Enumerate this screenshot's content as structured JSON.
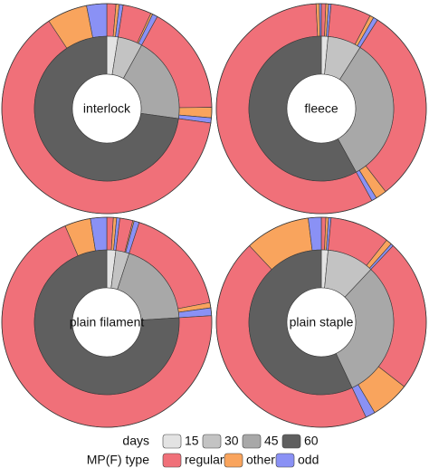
{
  "chart_data": {
    "type": "pie",
    "subtype": "nested-donut",
    "inner_ring": {
      "legend_title": "days",
      "categories": [
        "15",
        "30",
        "45",
        "60"
      ],
      "colors": [
        "#e3e3e3",
        "#c3c3c3",
        "#a8a8a8",
        "#5f5f5f"
      ]
    },
    "outer_ring": {
      "legend_title": "MP(F) type",
      "categories": [
        "regular",
        "other",
        "odd"
      ],
      "colors": [
        "#f07079",
        "#f9a45d",
        "#8a91f5"
      ]
    },
    "panels": [
      {
        "label": "interlock",
        "inner_fractions": [
          0.025,
          0.055,
          0.192,
          0.728
        ],
        "outer_segments": [
          {
            "day": "15",
            "type": "regular",
            "value": 0.014
          },
          {
            "day": "15",
            "type": "other",
            "value": 0.005
          },
          {
            "day": "15",
            "type": "odd",
            "value": 0.006
          },
          {
            "day": "30",
            "type": "regular",
            "value": 0.044
          },
          {
            "day": "30",
            "type": "other",
            "value": 0.003
          },
          {
            "day": "30",
            "type": "odd",
            "value": 0.008
          },
          {
            "day": "45",
            "type": "regular",
            "value": 0.168
          },
          {
            "day": "45",
            "type": "other",
            "value": 0.016
          },
          {
            "day": "45",
            "type": "odd",
            "value": 0.008
          },
          {
            "day": "60",
            "type": "regular",
            "value": 0.635
          },
          {
            "day": "60",
            "type": "other",
            "value": 0.062
          },
          {
            "day": "60",
            "type": "odd",
            "value": 0.031
          }
        ]
      },
      {
        "label": "fleece",
        "inner_fractions": [
          0.015,
          0.075,
          0.33,
          0.58
        ],
        "outer_segments": [
          {
            "day": "15",
            "type": "regular",
            "value": 0.007
          },
          {
            "day": "15",
            "type": "other",
            "value": 0.004
          },
          {
            "day": "15",
            "type": "odd",
            "value": 0.004
          },
          {
            "day": "30",
            "type": "regular",
            "value": 0.062
          },
          {
            "day": "30",
            "type": "other",
            "value": 0.006
          },
          {
            "day": "30",
            "type": "odd",
            "value": 0.007
          },
          {
            "day": "45",
            "type": "regular",
            "value": 0.305
          },
          {
            "day": "45",
            "type": "other",
            "value": 0.017
          },
          {
            "day": "45",
            "type": "odd",
            "value": 0.008
          },
          {
            "day": "60",
            "type": "regular",
            "value": 0.572
          },
          {
            "day": "60",
            "type": "other",
            "value": 0.005
          },
          {
            "day": "60",
            "type": "odd",
            "value": 0.003
          }
        ]
      },
      {
        "label": "plain filament",
        "inner_fractions": [
          0.02,
          0.03,
          0.19,
          0.76
        ],
        "outer_segments": [
          {
            "day": "15",
            "type": "regular",
            "value": 0.01
          },
          {
            "day": "15",
            "type": "other",
            "value": 0.005
          },
          {
            "day": "15",
            "type": "odd",
            "value": 0.005
          },
          {
            "day": "30",
            "type": "regular",
            "value": 0.02
          },
          {
            "day": "30",
            "type": "other",
            "value": 0.002
          },
          {
            "day": "30",
            "type": "odd",
            "value": 0.008
          },
          {
            "day": "45",
            "type": "regular",
            "value": 0.17
          },
          {
            "day": "45",
            "type": "other",
            "value": 0.008
          },
          {
            "day": "45",
            "type": "odd",
            "value": 0.012
          },
          {
            "day": "60",
            "type": "regular",
            "value": 0.695
          },
          {
            "day": "60",
            "type": "other",
            "value": 0.04
          },
          {
            "day": "60",
            "type": "odd",
            "value": 0.025
          }
        ]
      },
      {
        "label": "plain staple",
        "inner_fractions": [
          0.015,
          0.105,
          0.31,
          0.57
        ],
        "outer_segments": [
          {
            "day": "15",
            "type": "regular",
            "value": 0.007
          },
          {
            "day": "15",
            "type": "other",
            "value": 0.004
          },
          {
            "day": "15",
            "type": "odd",
            "value": 0.004
          },
          {
            "day": "30",
            "type": "regular",
            "value": 0.092
          },
          {
            "day": "30",
            "type": "other",
            "value": 0.009
          },
          {
            "day": "30",
            "type": "odd",
            "value": 0.004
          },
          {
            "day": "45",
            "type": "regular",
            "value": 0.235
          },
          {
            "day": "45",
            "type": "other",
            "value": 0.06
          },
          {
            "day": "45",
            "type": "odd",
            "value": 0.015
          },
          {
            "day": "60",
            "type": "regular",
            "value": 0.45
          },
          {
            "day": "60",
            "type": "other",
            "value": 0.1
          },
          {
            "day": "60",
            "type": "odd",
            "value": 0.02
          }
        ]
      }
    ],
    "legend_placement": "bottom-center",
    "grid": false
  }
}
